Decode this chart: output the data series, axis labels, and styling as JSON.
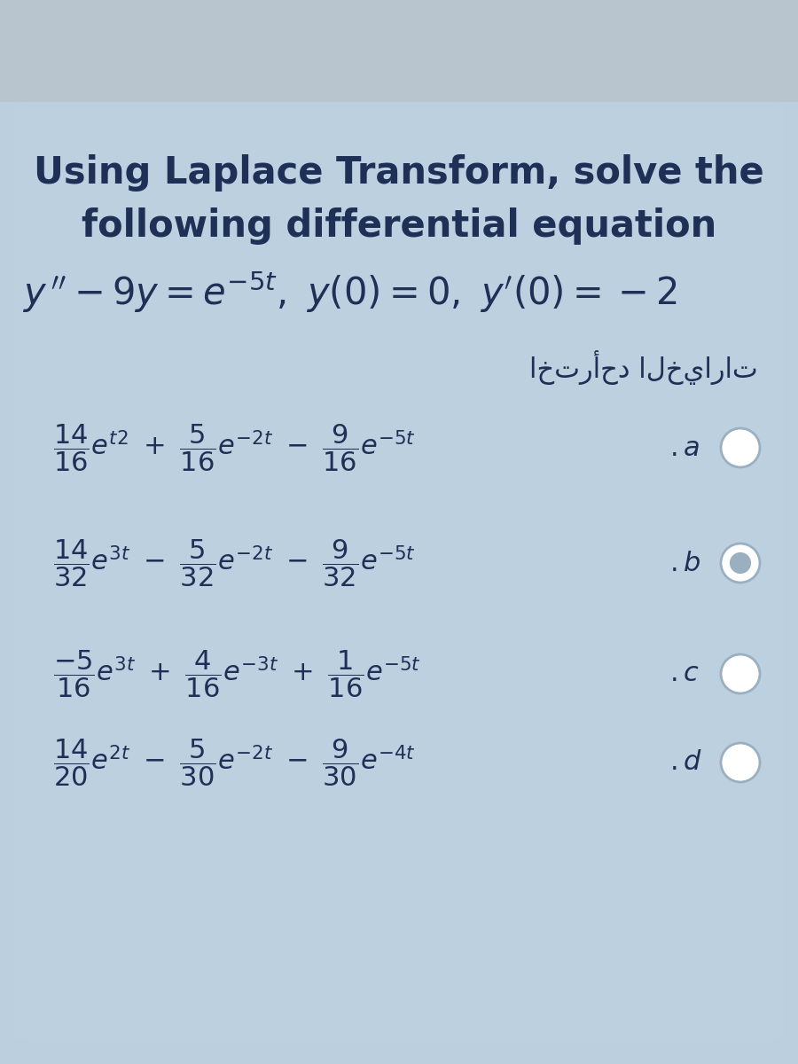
{
  "bg_color": "#bccfdf",
  "outer_bg_top": "#c4cdd6",
  "outer_bg": "#bccfdf",
  "card_color": "#bdd0e0",
  "title_line1": "Using Laplace Transform, solve the",
  "title_line2": "following differential equation",
  "arabic_text": "اخترأحد الخيارات",
  "title_fontsize": 30,
  "eq_fontsize": 28,
  "option_fontsize": 22,
  "arabic_fontsize": 22,
  "text_color": "#1e3056",
  "radio_fill": "#c8d8e6",
  "radio_edge": "#9aafc0",
  "radio_selected_fill": "#9aafc0"
}
